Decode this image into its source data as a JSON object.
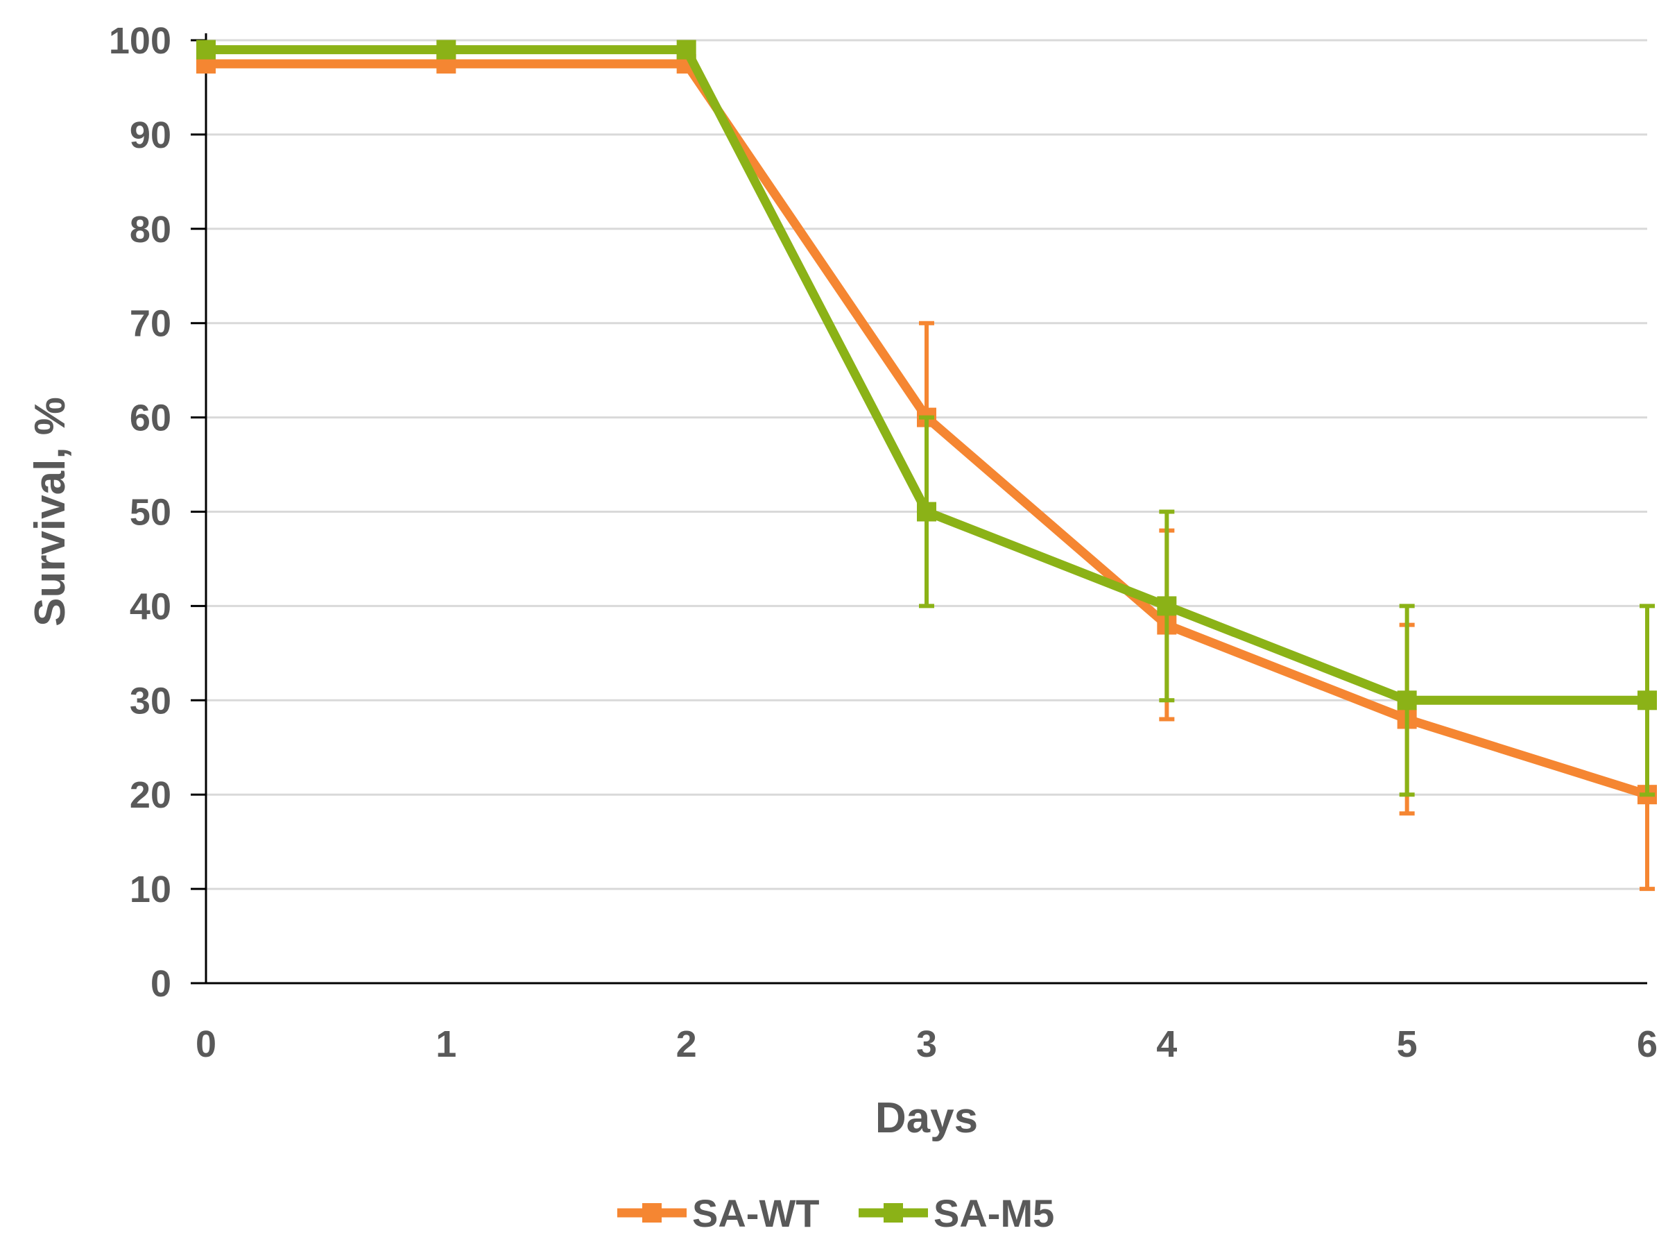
{
  "chart_data": {
    "type": "line",
    "title": "",
    "xlabel": "Days",
    "ylabel": "Survival, %",
    "x": [
      0,
      1,
      2,
      3,
      4,
      5,
      6
    ],
    "x_tick_labels": [
      "0",
      "1",
      "2",
      "3",
      "4",
      "5",
      "6"
    ],
    "y_tick_labels": [
      "0",
      "10",
      "20",
      "30",
      "40",
      "50",
      "60",
      "70",
      "80",
      "90",
      "100"
    ],
    "xlim": [
      0,
      6
    ],
    "ylim": [
      0,
      100
    ],
    "grid": "horizontal",
    "legend_position": "bottom",
    "series": [
      {
        "name": "SA-WT",
        "color": "#F58632",
        "marker": "square",
        "values": [
          97.5,
          97.5,
          97.5,
          60,
          38,
          28,
          20
        ],
        "error": [
          0,
          0,
          0,
          10,
          10,
          10,
          10
        ]
      },
      {
        "name": "SA-M5",
        "color": "#8BB217",
        "marker": "square",
        "values": [
          99,
          99,
          99,
          50,
          40,
          30,
          30
        ],
        "error": [
          0,
          0,
          0,
          10,
          10,
          10,
          10
        ]
      }
    ]
  }
}
